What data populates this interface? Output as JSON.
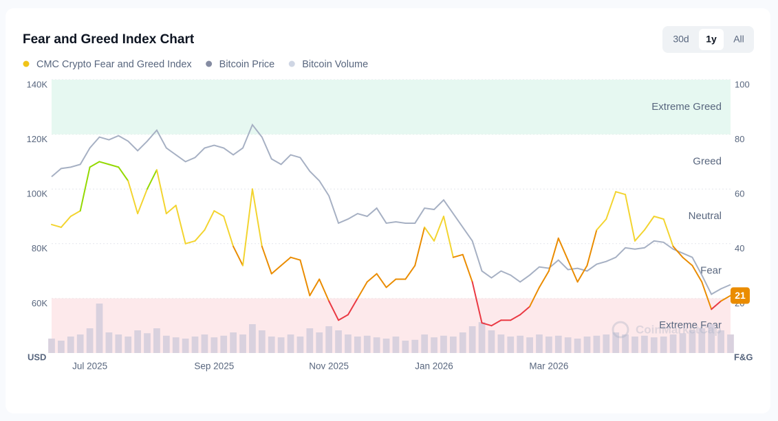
{
  "chart_data": {
    "type": "line",
    "title": "Fear and Greed Index Chart",
    "range_buttons": [
      "30d",
      "1y",
      "All"
    ],
    "active_range": "1y",
    "watermark": "CoinMarketCap",
    "y_unit": "USD",
    "y2_unit": "F&G",
    "categories": [
      null,
      null,
      null,
      null,
      "Jul 2025",
      null,
      null,
      null,
      null,
      null,
      null,
      null,
      null,
      null,
      null,
      null,
      null,
      "Sep 2025",
      null,
      null,
      null,
      null,
      null,
      null,
      null,
      null,
      null,
      null,
      null,
      "Nov 2025",
      null,
      null,
      null,
      null,
      null,
      null,
      null,
      null,
      null,
      null,
      "Jan 2026",
      null,
      null,
      null,
      null,
      null,
      null,
      null,
      null,
      null,
      null,
      null,
      "Mar 2026",
      null,
      null,
      null,
      null,
      null,
      null,
      null,
      null,
      null,
      null,
      null,
      null,
      null,
      null,
      null,
      null,
      null,
      null,
      null
    ],
    "ylim": [
      40000,
      140000
    ],
    "yticks": [
      {
        "value": 60000,
        "label": "60K"
      },
      {
        "value": 80000,
        "label": "80K"
      },
      {
        "value": 100000,
        "label": "100K"
      },
      {
        "value": 120000,
        "label": "120K"
      },
      {
        "value": 140000,
        "label": "140K"
      }
    ],
    "y2lim": [
      0,
      100
    ],
    "y2ticks": [
      20,
      40,
      60,
      80,
      100
    ],
    "grid": true,
    "zones": [
      {
        "name": "Extreme Fear",
        "from": 0,
        "to": 20,
        "line_color": "#ea3943",
        "band_color": "#fde9eb"
      },
      {
        "name": "Fear",
        "from": 20,
        "to": 40,
        "line_color": "#ea8c00"
      },
      {
        "name": "Neutral",
        "from": 40,
        "to": 60,
        "line_color": "#f3d42f"
      },
      {
        "name": "Greed",
        "from": 60,
        "to": 80,
        "line_color": "#93d900"
      },
      {
        "name": "Extreme Greed",
        "from": 80,
        "to": 100,
        "line_color": "#16c784",
        "band_color": "#e6f8f1"
      }
    ],
    "series": [
      {
        "name": "CMC Crypto Fear and Greed Index",
        "color": "#f0c419",
        "axis": "y2",
        "kind": "zoned-line",
        "values": [
          47,
          46,
          50,
          52,
          68,
          70,
          69,
          68,
          63,
          51,
          60,
          67,
          51,
          54,
          40,
          41,
          45,
          52,
          50,
          39,
          32,
          60,
          39,
          29,
          32,
          35,
          34,
          21,
          27,
          19,
          12,
          14,
          20,
          26,
          29,
          24,
          27,
          27,
          32,
          46,
          41,
          50,
          35,
          36,
          26,
          11,
          10,
          12,
          12,
          14,
          17,
          24,
          30,
          42,
          34,
          26,
          32,
          45,
          49,
          59,
          58,
          41,
          45,
          50,
          49,
          39,
          35,
          32,
          26,
          16,
          19,
          21
        ]
      },
      {
        "name": "Bitcoin Price",
        "color": "#a6b0c3",
        "axis": "y",
        "kind": "line",
        "values": [
          104500,
          107500,
          108000,
          109000,
          115000,
          119000,
          118000,
          119500,
          117500,
          114000,
          117500,
          121500,
          115000,
          112500,
          110000,
          111500,
          115000,
          116000,
          115000,
          112500,
          115000,
          123500,
          119000,
          111000,
          109000,
          112500,
          111500,
          106500,
          103000,
          97500,
          87500,
          89000,
          91000,
          90000,
          93000,
          87500,
          88000,
          87500,
          87500,
          93000,
          92500,
          96000,
          91000,
          86000,
          81000,
          70000,
          67500,
          70000,
          68500,
          66000,
          68500,
          71500,
          71000,
          74000,
          70500,
          71000,
          70000,
          72500,
          73500,
          75000,
          78500,
          78000,
          78500,
          81000,
          80500,
          78000,
          76500,
          75000,
          68500,
          61500,
          63500,
          65000
        ]
      },
      {
        "name": "Bitcoin Volume",
        "color": "#d9d1de",
        "kind": "volume",
        "values": [
          35,
          30,
          40,
          45,
          60,
          120,
          50,
          45,
          40,
          55,
          48,
          60,
          42,
          38,
          35,
          40,
          45,
          38,
          42,
          50,
          45,
          70,
          55,
          40,
          38,
          45,
          40,
          60,
          50,
          65,
          55,
          45,
          40,
          42,
          38,
          35,
          40,
          30,
          32,
          45,
          38,
          42,
          40,
          50,
          65,
          75,
          55,
          45,
          40,
          42,
          38,
          45,
          40,
          42,
          38,
          35,
          40,
          42,
          45,
          50,
          45,
          40,
          42,
          38,
          40,
          45,
          48,
          55,
          60,
          70,
          55,
          45
        ]
      }
    ]
  }
}
